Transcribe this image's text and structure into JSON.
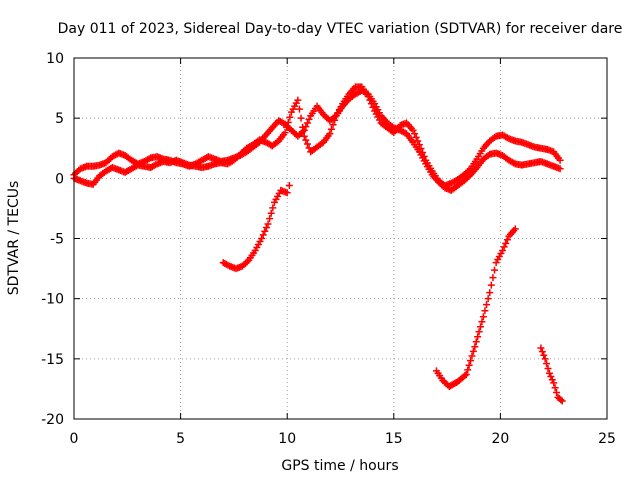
{
  "chart_data": {
    "type": "scatter",
    "title": "Day 011 of 2023, Sidereal Day-to-day VTEC variation (SDTVAR) for receiver dare",
    "xlabel": "GPS time / hours",
    "ylabel": "SDTVAR / TECUs",
    "xlim": [
      0,
      25
    ],
    "ylim": [
      -20,
      10
    ],
    "x_ticks": [
      0,
      5,
      10,
      15,
      20,
      25
    ],
    "y_ticks": [
      -20,
      -15,
      -10,
      -5,
      0,
      5,
      10
    ],
    "grid": true,
    "marker": "plus",
    "color": "#ff0000",
    "series": [
      {
        "name": "main-trace-a",
        "x": [
          0.0,
          0.3,
          0.6,
          0.9,
          1.2,
          1.5,
          1.8,
          2.1,
          2.4,
          2.7,
          3.0,
          3.3,
          3.6,
          3.9,
          4.2,
          4.5,
          4.8,
          5.1,
          5.4,
          5.7,
          6.0,
          6.3,
          6.6,
          6.9,
          7.2,
          7.5,
          7.8,
          8.1,
          8.4,
          8.7,
          9.0,
          9.3,
          9.6,
          9.9,
          10.2,
          10.5,
          10.8,
          11.1,
          11.4,
          11.7,
          12.0,
          12.3,
          12.6,
          12.9,
          13.2,
          13.5,
          13.8,
          14.1,
          14.4,
          14.7,
          15.0,
          15.3,
          15.6,
          15.9,
          16.2,
          16.5,
          16.8,
          17.1,
          17.4,
          17.7,
          18.0,
          18.3,
          18.6,
          18.9,
          19.2,
          19.5,
          19.8,
          20.1,
          20.4,
          20.7,
          21.0,
          21.3,
          21.6,
          21.9,
          22.2,
          22.5,
          22.8
        ],
        "y": [
          0.3,
          0.8,
          1.0,
          1.0,
          1.1,
          1.3,
          1.8,
          2.1,
          1.9,
          1.5,
          1.2,
          1.4,
          1.7,
          1.8,
          1.6,
          1.5,
          1.3,
          1.2,
          1.0,
          1.2,
          1.5,
          1.8,
          1.6,
          1.4,
          1.5,
          1.7,
          1.9,
          2.2,
          2.6,
          3.0,
          3.6,
          4.2,
          4.8,
          4.5,
          4.0,
          3.5,
          4.0,
          5.2,
          6.0,
          5.3,
          4.8,
          5.2,
          6.2,
          7.0,
          7.6,
          7.6,
          6.8,
          5.6,
          4.6,
          4.2,
          3.8,
          4.4,
          4.6,
          4.0,
          2.8,
          1.5,
          0.6,
          -0.2,
          -0.6,
          -0.4,
          -0.1,
          0.3,
          0.8,
          1.6,
          2.5,
          3.1,
          3.5,
          3.6,
          3.3,
          3.1,
          3.0,
          2.8,
          2.6,
          2.5,
          2.4,
          2.2,
          1.5
        ]
      },
      {
        "name": "main-trace-b",
        "x": [
          0.0,
          0.3,
          0.6,
          0.9,
          1.2,
          1.5,
          1.8,
          2.1,
          2.4,
          2.7,
          3.0,
          3.3,
          3.6,
          3.9,
          4.2,
          4.5,
          4.8,
          5.1,
          5.4,
          5.7,
          6.0,
          6.3,
          6.6,
          6.9,
          7.2,
          7.5,
          7.8,
          8.1,
          8.4,
          8.7,
          9.0,
          9.3,
          9.6,
          9.9,
          10.2,
          10.5,
          10.8,
          11.1,
          11.4,
          11.7,
          12.0,
          12.3,
          12.6,
          12.9,
          13.2,
          13.5,
          13.8,
          14.1,
          14.4,
          14.7,
          15.0,
          15.3,
          15.6,
          15.9,
          16.2,
          16.5,
          16.8,
          17.1,
          17.4,
          17.7,
          18.0,
          18.3,
          18.6,
          18.9,
          19.2,
          19.5,
          19.8,
          20.1,
          20.4,
          20.7,
          21.0,
          21.3,
          21.6,
          21.9,
          22.2,
          22.5,
          22.8
        ],
        "y": [
          0.0,
          -0.2,
          -0.4,
          -0.5,
          0.2,
          0.6,
          0.9,
          0.7,
          0.5,
          0.8,
          1.1,
          1.0,
          0.9,
          1.2,
          1.4,
          1.3,
          1.5,
          1.3,
          1.1,
          1.0,
          0.9,
          1.0,
          1.2,
          1.3,
          1.2,
          1.5,
          2.0,
          2.5,
          2.8,
          3.2,
          3.0,
          2.7,
          3.1,
          3.8,
          5.5,
          6.5,
          3.5,
          2.2,
          2.6,
          3.0,
          3.7,
          5.2,
          6.0,
          6.6,
          7.0,
          7.3,
          7.0,
          6.2,
          5.2,
          4.6,
          4.2,
          4.0,
          3.7,
          3.0,
          2.2,
          1.2,
          0.3,
          -0.3,
          -0.8,
          -1.0,
          -0.6,
          -0.2,
          0.3,
          0.9,
          1.6,
          2.0,
          2.1,
          1.9,
          1.5,
          1.2,
          1.1,
          1.2,
          1.3,
          1.4,
          1.2,
          1.0,
          0.8
        ]
      },
      {
        "name": "segment-1",
        "x": [
          7.0,
          7.3,
          7.6,
          7.9,
          8.2,
          8.5,
          8.8,
          9.1,
          9.4,
          9.7,
          10.0,
          10.1
        ],
        "y": [
          -7.0,
          -7.3,
          -7.5,
          -7.3,
          -6.8,
          -6.0,
          -5.0,
          -3.8,
          -2.0,
          -1.0,
          -1.2,
          -0.6
        ]
      },
      {
        "name": "segment-2",
        "x": [
          17.0,
          17.3,
          17.6,
          18.0,
          18.4,
          18.8,
          19.2,
          19.5,
          19.8,
          20.1,
          20.4,
          20.7
        ],
        "y": [
          -16.0,
          -16.8,
          -17.3,
          -16.9,
          -16.3,
          -14.0,
          -11.5,
          -9.5,
          -7.0,
          -6.0,
          -4.8,
          -4.2
        ]
      },
      {
        "name": "segment-3",
        "x": [
          21.9,
          22.1,
          22.3,
          22.5,
          22.7,
          22.9
        ],
        "y": [
          -14.1,
          -15.0,
          -16.2,
          -17.0,
          -18.2,
          -18.5
        ]
      }
    ]
  }
}
